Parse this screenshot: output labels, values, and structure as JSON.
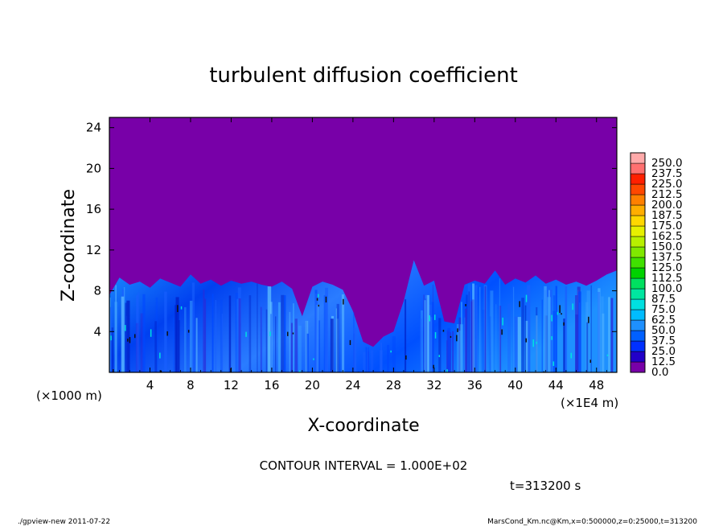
{
  "chart_data": {
    "type": "heatmap",
    "title": "turbulent diffusion coefficient",
    "xlabel": "X-coordinate",
    "ylabel": "Z-coordinate",
    "x_unit_label": "(×1E4 m)",
    "y_unit_label": "(×1000 m)",
    "xlim": [
      0,
      50
    ],
    "ylim": [
      0,
      25
    ],
    "x_ticks": [
      4,
      8,
      12,
      16,
      20,
      24,
      28,
      32,
      36,
      40,
      44,
      48
    ],
    "y_ticks": [
      4,
      8,
      12,
      16,
      20,
      24
    ],
    "colorbar": {
      "levels": [
        "0.0",
        "12.5",
        "25.0",
        "37.5",
        "50.0",
        "62.5",
        "75.0",
        "87.5",
        "100.0",
        "112.5",
        "125.0",
        "137.5",
        "150.0",
        "162.5",
        "175.0",
        "187.5",
        "200.0",
        "212.5",
        "225.0",
        "237.5",
        "250.0"
      ],
      "colors": [
        "#7800a8",
        "#2200c8",
        "#0030ff",
        "#0060ff",
        "#1e90ff",
        "#00bcff",
        "#00e0e0",
        "#00e6a0",
        "#00e060",
        "#00d200",
        "#40e000",
        "#80e800",
        "#b8f000",
        "#e6f000",
        "#ffd700",
        "#ffae00",
        "#ff8000",
        "#ff4800",
        "#ff2000",
        "#ff7070",
        "#ffaaaa"
      ]
    },
    "z_top_profile": [
      [
        0,
        7.6
      ],
      [
        1,
        9.3
      ],
      [
        2,
        8.6
      ],
      [
        3,
        8.9
      ],
      [
        4,
        8.3
      ],
      [
        5,
        9.2
      ],
      [
        6,
        8.8
      ],
      [
        7,
        8.4
      ],
      [
        8,
        9.6
      ],
      [
        9,
        8.7
      ],
      [
        10,
        9.1
      ],
      [
        11,
        8.5
      ],
      [
        12,
        9.0
      ],
      [
        13,
        8.7
      ],
      [
        14,
        8.9
      ],
      [
        15,
        8.6
      ],
      [
        16,
        8.4
      ],
      [
        17,
        8.9
      ],
      [
        18,
        8.2
      ],
      [
        19,
        5.5
      ],
      [
        20,
        8.4
      ],
      [
        21,
        8.9
      ],
      [
        22,
        8.6
      ],
      [
        23,
        8.1
      ],
      [
        24,
        6.0
      ],
      [
        25,
        3.0
      ],
      [
        26,
        2.5
      ],
      [
        27,
        3.5
      ],
      [
        28,
        4.0
      ],
      [
        29,
        7.0
      ],
      [
        30,
        11.0
      ],
      [
        31,
        8.5
      ],
      [
        32,
        9.0
      ],
      [
        33,
        5.0
      ],
      [
        34,
        4.8
      ],
      [
        35,
        8.6
      ],
      [
        36,
        9.0
      ],
      [
        37,
        8.7
      ],
      [
        38,
        10.0
      ],
      [
        39,
        8.6
      ],
      [
        40,
        9.2
      ],
      [
        41,
        8.8
      ],
      [
        42,
        9.5
      ],
      [
        43,
        8.7
      ],
      [
        44,
        9.1
      ],
      [
        45,
        8.6
      ],
      [
        46,
        8.9
      ],
      [
        47,
        8.5
      ],
      [
        48,
        9.0
      ],
      [
        49,
        9.6
      ],
      [
        50,
        10.0
      ]
    ],
    "contour_interval": "CONTOUR INTERVAL = 1.000E+02",
    "time_label": "t=313200 s"
  },
  "footer": {
    "left": "./gpview-new   2011-07-22",
    "right": "MarsCond_Km.nc@Km,x=0:500000,z=0:25000,t=313200"
  }
}
